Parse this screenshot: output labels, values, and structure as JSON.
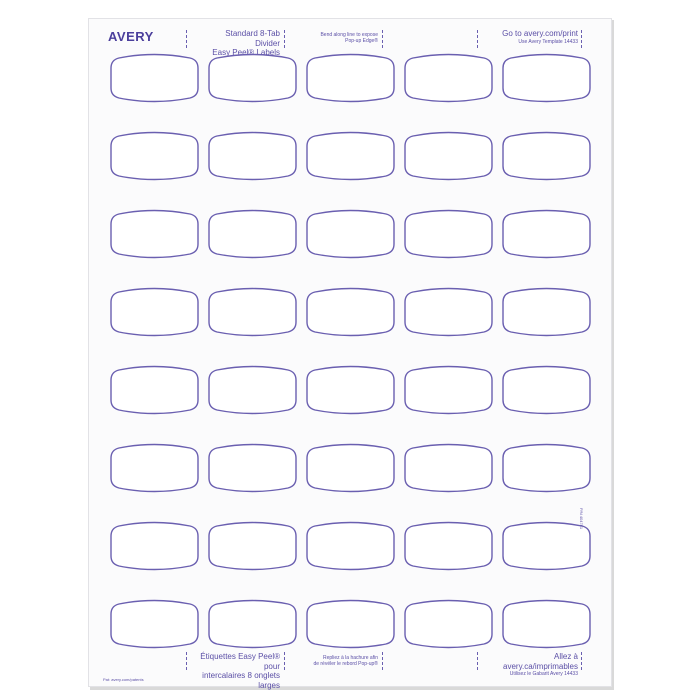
{
  "brand": "AVERY",
  "header": {
    "product_line1": "Standard 8-Tab Divider",
    "product_line2": "Easy Peel® Labels",
    "bend_line1": "Bend along line to expose",
    "bend_line2": "Pop-up Edge®",
    "goto_line1": "Go to avery.com/print",
    "goto_line2": "Use Avery Template 14433"
  },
  "footer": {
    "product_line1": "Étiquettes Easy Peel® pour",
    "product_line2": "intercalaires 8 onglets larges",
    "bend_line1": "Repliez à la hachure afin",
    "bend_line2": "de révéler le rebord Pop-up®",
    "goto_line1": "Allez à avery.ca/imprimables",
    "goto_line2": "Utilisez le Gabarit Avery 14433",
    "patents": "Pat: avery.com/patents"
  },
  "part_number": "P/N 404781",
  "label_grid": {
    "rows": 8,
    "columns": 5
  },
  "colors": {
    "ink": "#5b4fa6",
    "outline": "#6a5fb0",
    "sheet": "#fbfbfc"
  }
}
